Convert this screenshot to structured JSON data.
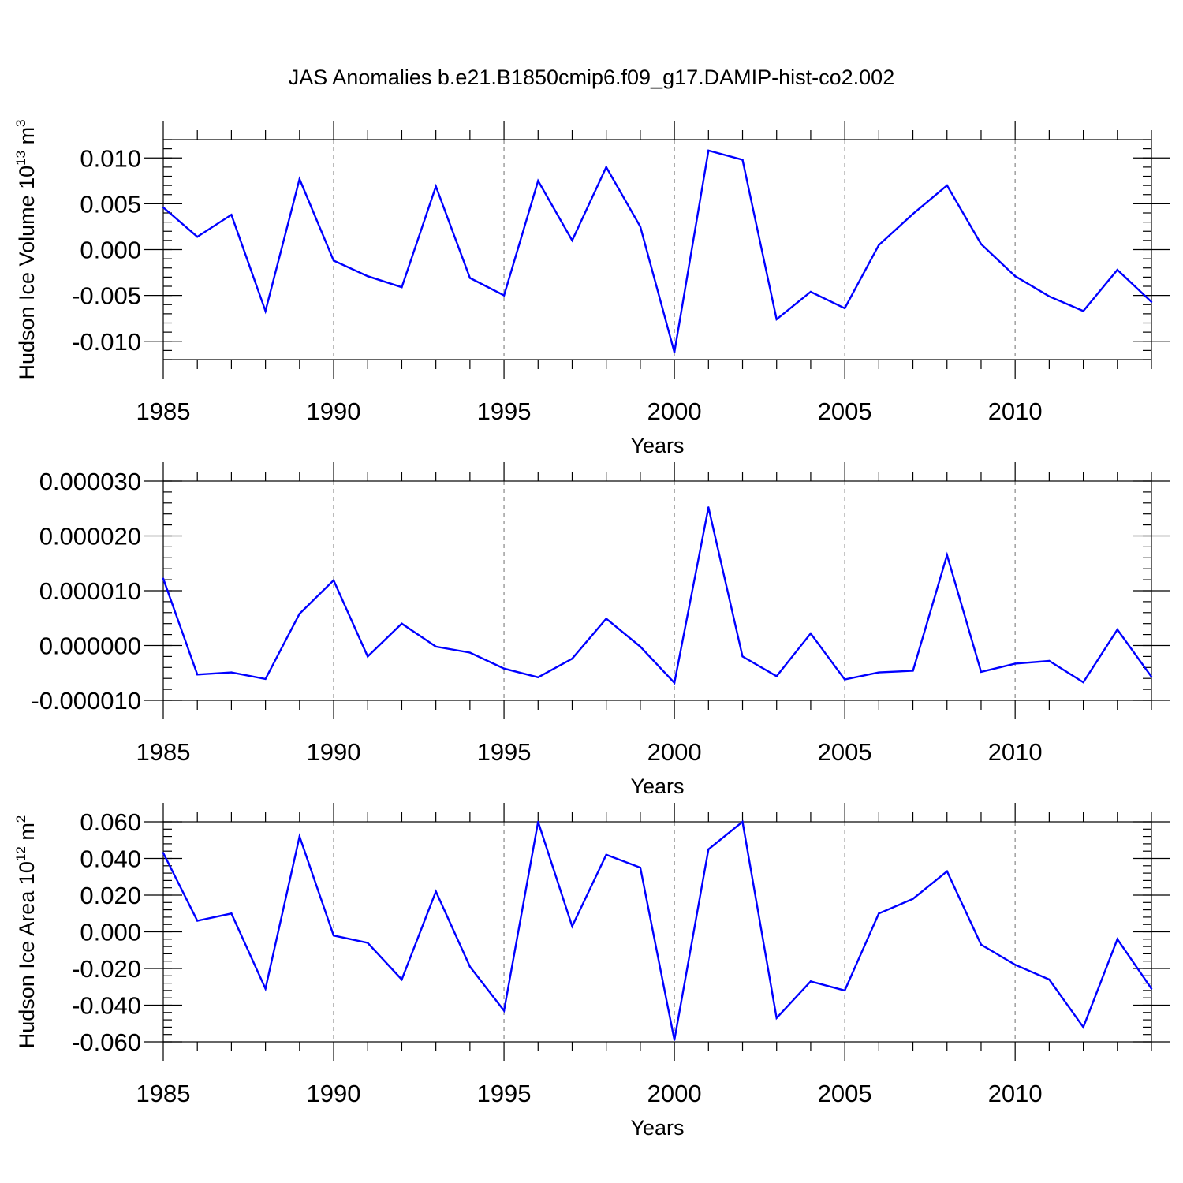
{
  "title": "JAS Anomalies b.e21.B1850cmip6.f09_g17.DAMIP-hist-co2.002",
  "colors": {
    "line": "#0000ff",
    "grid": "#999999",
    "axis": "#000000"
  },
  "chart_data": [
    {
      "type": "line",
      "ylabel_main": "Hudson Ice Volume 10",
      "ylabel_exp": "13",
      "ylabel_unit": "m",
      "ylabel_unit_exp": "3",
      "xlabel": "Years",
      "x": [
        1985,
        1986,
        1987,
        1988,
        1989,
        1990,
        1991,
        1992,
        1993,
        1994,
        1995,
        1996,
        1997,
        1998,
        1999,
        2000,
        2001,
        2002,
        2003,
        2004,
        2005,
        2006,
        2007,
        2008,
        2009,
        2010,
        2011,
        2012,
        2013,
        2014
      ],
      "values": [
        0.0046,
        0.0014,
        0.0038,
        -0.0067,
        0.0077,
        -0.0012,
        -0.0029,
        -0.0041,
        0.0069,
        -0.0031,
        -0.005,
        0.0075,
        0.001,
        0.009,
        0.0025,
        -0.0112,
        0.0108,
        0.0098,
        -0.0076,
        -0.0046,
        -0.0064,
        0.0005,
        0.0039,
        0.007,
        0.0006,
        -0.0029,
        -0.0051,
        -0.0067,
        -0.0022,
        -0.0057
      ],
      "xlim": [
        1985,
        2014
      ],
      "ylim": [
        -0.012,
        0.012
      ],
      "yticks": [
        -0.01,
        -0.005,
        0.0,
        0.005,
        0.01
      ],
      "ytick_labels": [
        "-0.010",
        "-0.005",
        "0.000",
        "0.005",
        "0.010"
      ],
      "yminor_step": 0.001,
      "xticks": [
        1985,
        1990,
        1995,
        2000,
        2005,
        2010
      ],
      "xtick_labels": [
        "1985",
        "1990",
        "1995",
        "2000",
        "2005",
        "2010"
      ],
      "grid_x": [
        1990,
        1995,
        2000,
        2005,
        2010
      ]
    },
    {
      "type": "line",
      "ylabel_main": "",
      "ylabel_exp": "",
      "ylabel_unit": "",
      "ylabel_unit_exp": "",
      "xlabel": "Years",
      "x": [
        1985,
        1986,
        1987,
        1988,
        1989,
        1990,
        1991,
        1992,
        1993,
        1994,
        1995,
        1996,
        1997,
        1998,
        1999,
        2000,
        2001,
        2002,
        2003,
        2004,
        2005,
        2006,
        2007,
        2008,
        2009,
        2010,
        2011,
        2012,
        2013,
        2014
      ],
      "values": [
        1.22e-05,
        -5.3e-06,
        -4.9e-06,
        -6.1e-06,
        5.8e-06,
        1.19e-05,
        -2e-06,
        4e-06,
        -2e-07,
        -1.3e-06,
        -4.2e-06,
        -5.8e-06,
        -2.4e-06,
        4.9e-06,
        -2e-07,
        -6.8e-06,
        2.52e-05,
        -2e-06,
        -5.6e-06,
        2.2e-06,
        -6.2e-06,
        -4.9e-06,
        -4.6e-06,
        1.65e-05,
        -4.8e-06,
        -3.3e-06,
        -2.8e-06,
        -6.7e-06,
        2.9e-06,
        -5.7e-06
      ],
      "xlim": [
        1985,
        2014
      ],
      "ylim": [
        -1e-05,
        3e-05
      ],
      "yticks": [
        -1e-05,
        0.0,
        1e-05,
        2e-05,
        3e-05
      ],
      "ytick_labels": [
        "-0.000010",
        "0.000000",
        "0.000010",
        "0.000020",
        "0.000030"
      ],
      "yminor_step": 2e-06,
      "xticks": [
        1985,
        1990,
        1995,
        2000,
        2005,
        2010
      ],
      "xtick_labels": [
        "1985",
        "1990",
        "1995",
        "2000",
        "2005",
        "2010"
      ],
      "grid_x": [
        1990,
        1995,
        2000,
        2005,
        2010
      ]
    },
    {
      "type": "line",
      "ylabel_main": "Hudson Ice Area 10",
      "ylabel_exp": "12",
      "ylabel_unit": "m",
      "ylabel_unit_exp": "2",
      "xlabel": "Years",
      "x": [
        1985,
        1986,
        1987,
        1988,
        1989,
        1990,
        1991,
        1992,
        1993,
        1994,
        1995,
        1996,
        1997,
        1998,
        1999,
        2000,
        2001,
        2002,
        2003,
        2004,
        2005,
        2006,
        2007,
        2008,
        2009,
        2010,
        2011,
        2012,
        2013,
        2014
      ],
      "values": [
        0.043,
        0.006,
        0.01,
        -0.031,
        0.052,
        -0.002,
        -0.006,
        -0.026,
        0.022,
        -0.019,
        -0.043,
        0.06,
        0.003,
        0.042,
        0.035,
        -0.059,
        0.045,
        0.06,
        -0.047,
        -0.027,
        -0.032,
        0.01,
        0.018,
        0.033,
        -0.007,
        -0.018,
        -0.026,
        -0.052,
        -0.004,
        -0.031
      ],
      "xlim": [
        1985,
        2014
      ],
      "ylim": [
        -0.06,
        0.06
      ],
      "yticks": [
        -0.06,
        -0.04,
        -0.02,
        0.0,
        0.02,
        0.04,
        0.06
      ],
      "ytick_labels": [
        "-0.060",
        "-0.040",
        "-0.020",
        "0.000",
        "0.020",
        "0.040",
        "0.060"
      ],
      "yminor_step": 0.004,
      "xticks": [
        1985,
        1990,
        1995,
        2000,
        2005,
        2010
      ],
      "xtick_labels": [
        "1985",
        "1990",
        "1995",
        "2000",
        "2005",
        "2010"
      ],
      "grid_x": [
        1990,
        1995,
        2000,
        2005,
        2010
      ]
    }
  ]
}
